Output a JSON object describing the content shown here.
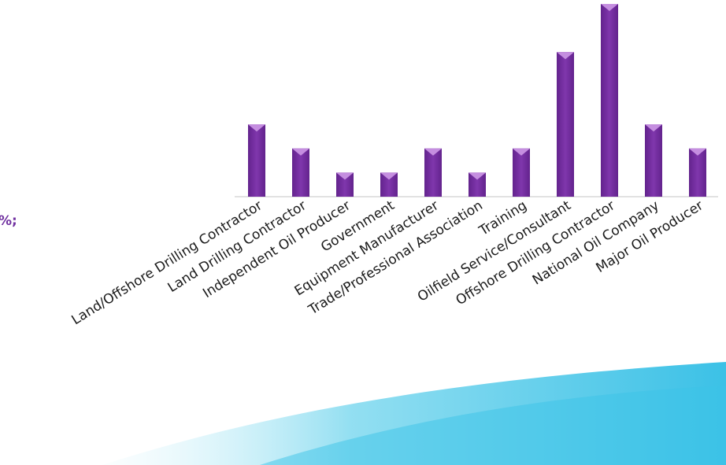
{
  "chart_data": {
    "type": "bar",
    "annotation": "%;",
    "categories": [
      "Land/Offshore Drilling Contractor",
      "Land Drilling Contractor",
      "Independent Oil Producer",
      "Government",
      "Equipment Manufacturer",
      "Trade/Professional Association",
      "Training",
      "Oilfield Service/Consultant",
      "Offshore Drilling Contractor",
      "National Oil Company",
      "Major Oil Producer"
    ],
    "values": [
      3,
      2,
      1,
      1,
      2,
      1,
      2,
      6,
      8,
      3,
      2
    ],
    "color": "#7030a0",
    "ylim": [
      0,
      8
    ]
  }
}
